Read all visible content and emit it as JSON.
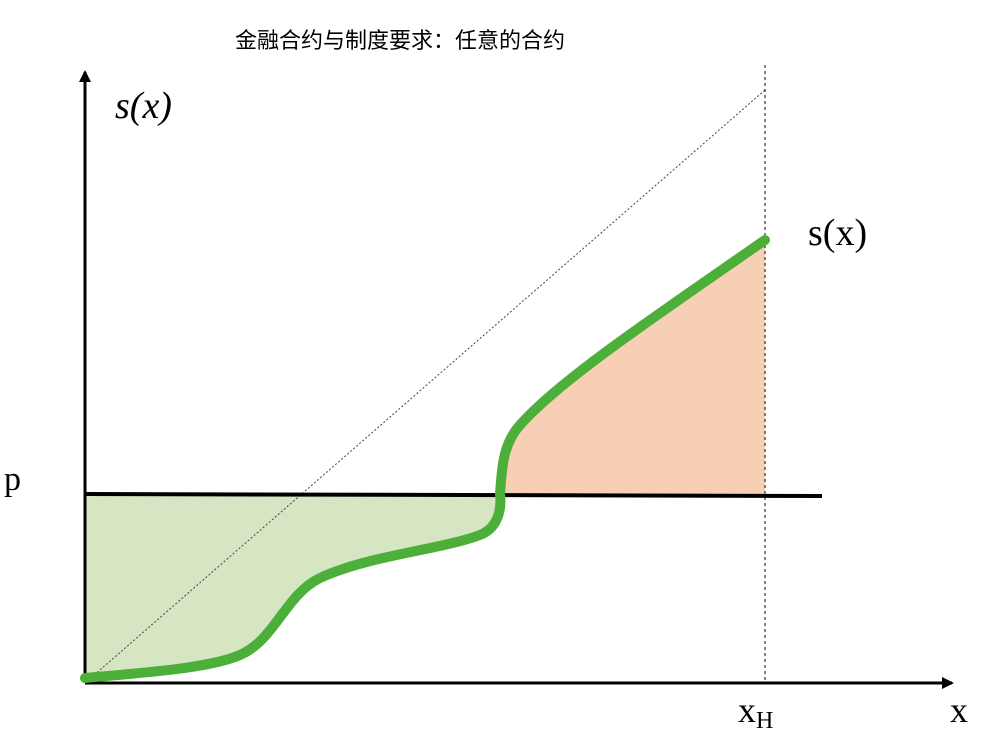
{
  "title": "金融合约与制度要求：任意的合约",
  "y_axis_label": "s(x)",
  "curve_label": "s(x)",
  "price_label": "p",
  "x_high_label": {
    "base": "x",
    "subscript": "H"
  },
  "x_axis_label": "x"
}
